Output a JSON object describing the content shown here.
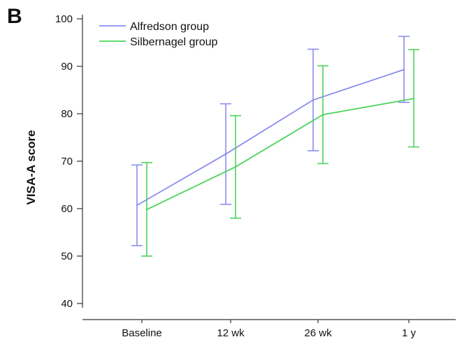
{
  "panel_label": "B",
  "colors": {
    "alfredson": "#8c8cf0",
    "silbernagel": "#4cd45c",
    "axis": "#333333"
  },
  "chart_data": {
    "type": "line",
    "title": "",
    "xlabel": "",
    "ylabel": "VISA-A score",
    "categories": [
      "Baseline",
      "12 wk",
      "26 wk",
      "1 y"
    ],
    "ylim": [
      40,
      100
    ],
    "yticks": [
      40,
      50,
      60,
      70,
      80,
      90,
      100
    ],
    "grid": false,
    "legend_position": "top-left",
    "series": [
      {
        "name": "Alfredson group",
        "color": "#8c8cf0",
        "values": [
          60.7,
          71.5,
          82.9,
          89.3
        ],
        "error_low": [
          52.2,
          60.9,
          72.2,
          82.4
        ],
        "error_high": [
          69.2,
          82.1,
          93.6,
          96.3
        ]
      },
      {
        "name": "Silbernagel group",
        "color": "#4cd45c",
        "values": [
          59.8,
          68.8,
          79.8,
          83.2
        ],
        "error_low": [
          50.0,
          58.0,
          69.5,
          73.0
        ],
        "error_high": [
          69.7,
          79.6,
          90.1,
          93.5
        ]
      }
    ]
  }
}
